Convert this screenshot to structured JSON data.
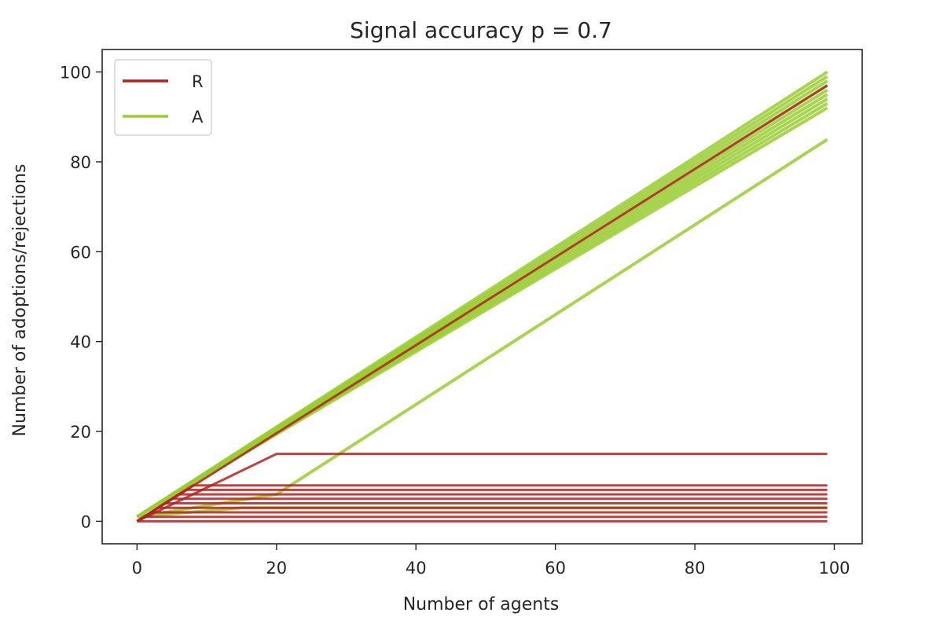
{
  "chart_data": {
    "type": "line",
    "title": "Signal accuracy p =  0.7",
    "xlabel": "Number of agents",
    "ylabel": "Number of adoptions/rejections",
    "xlim": [
      -5,
      104
    ],
    "ylim": [
      -5,
      105
    ],
    "xticks": [
      0,
      20,
      40,
      60,
      80,
      100
    ],
    "yticks": [
      0,
      20,
      40,
      60,
      80,
      100
    ],
    "legend": {
      "placement": "top-left",
      "entries": [
        {
          "label": "R",
          "color": "#b22222"
        },
        {
          "label": "A",
          "color": "#9acd32"
        }
      ]
    },
    "colors": {
      "R": "#b22222",
      "A": "#9acd32"
    },
    "grid": false,
    "series": [
      {
        "name": "R",
        "description_values": "many simulation runs; rejections mostly plateau near 0-8, one run plateaus at 15, one run grows linearly to ~97",
        "runs": [
          {
            "x": [
              0,
              99
            ],
            "y": [
              0,
              97
            ]
          },
          {
            "x": [
              0,
              20,
              99
            ],
            "y": [
              0,
              15,
              15
            ]
          },
          {
            "x": [
              0,
              8,
              99
            ],
            "y": [
              0,
              8,
              8
            ]
          },
          {
            "x": [
              0,
              7,
              99
            ],
            "y": [
              0,
              7,
              7
            ]
          },
          {
            "x": [
              0,
              6,
              99
            ],
            "y": [
              0,
              6,
              6
            ]
          },
          {
            "x": [
              0,
              5,
              99
            ],
            "y": [
              0,
              5,
              5
            ]
          },
          {
            "x": [
              0,
              4,
              99
            ],
            "y": [
              0,
              4,
              4
            ]
          },
          {
            "x": [
              0,
              3,
              99
            ],
            "y": [
              0,
              3,
              3
            ]
          },
          {
            "x": [
              0,
              2,
              99
            ],
            "y": [
              0,
              2,
              2
            ]
          },
          {
            "x": [
              0,
              1,
              99
            ],
            "y": [
              0,
              1,
              1
            ]
          },
          {
            "x": [
              0,
              99
            ],
            "y": [
              0,
              0
            ]
          }
        ]
      },
      {
        "name": "A",
        "description_values": "many simulation runs; adoptions mostly grow linearly reaching ~92-100 at x=99, one run reaches ~85, one plateaus at 3",
        "runs": [
          {
            "x": [
              0,
              99
            ],
            "y": [
              1,
              100
            ]
          },
          {
            "x": [
              0,
              99
            ],
            "y": [
              1,
              99
            ]
          },
          {
            "x": [
              0,
              99
            ],
            "y": [
              1,
              98
            ]
          },
          {
            "x": [
              0,
              99
            ],
            "y": [
              1,
              97
            ]
          },
          {
            "x": [
              0,
              99
            ],
            "y": [
              1,
              96
            ]
          },
          {
            "x": [
              0,
              99
            ],
            "y": [
              1,
              95
            ]
          },
          {
            "x": [
              0,
              99
            ],
            "y": [
              1,
              94
            ]
          },
          {
            "x": [
              0,
              99
            ],
            "y": [
              1,
              93
            ]
          },
          {
            "x": [
              0,
              99
            ],
            "y": [
              1,
              92
            ]
          },
          {
            "x": [
              0,
              20,
              99
            ],
            "y": [
              1,
              6,
              85
            ]
          },
          {
            "x": [
              0,
              15,
              99
            ],
            "y": [
              1,
              3,
              3
            ]
          }
        ]
      }
    ]
  }
}
